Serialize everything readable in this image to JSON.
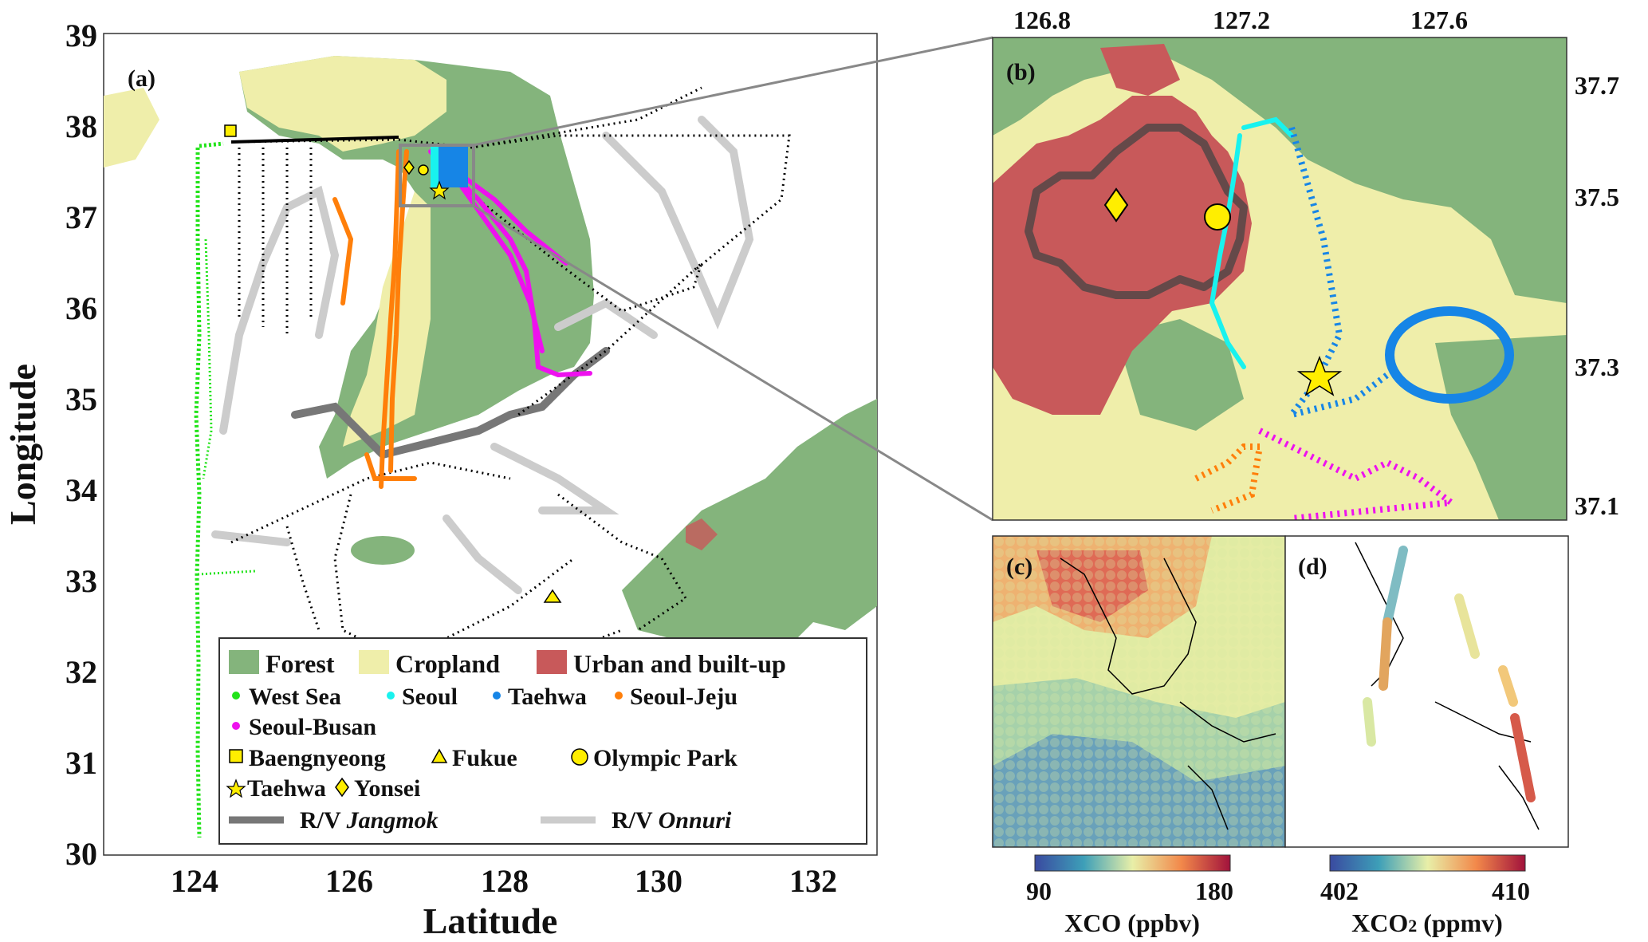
{
  "panels": {
    "a": {
      "label": "(a)",
      "xlabel": "Latitude",
      "ylabel": "Longitude",
      "xticks": [
        "124",
        "126",
        "128",
        "130",
        "132"
      ],
      "yticks": [
        "39",
        "38",
        "37",
        "36",
        "35",
        "34",
        "33",
        "32",
        "31",
        "30"
      ],
      "xlim": [
        123,
        133
      ],
      "ylim": [
        30,
        39
      ]
    },
    "b": {
      "label": "(b)",
      "xticks": [
        "126.8",
        "127.2",
        "127.6"
      ],
      "yticks": [
        "37.7",
        "37.5",
        "37.3",
        "37.1"
      ]
    },
    "c": {
      "label": "(c)",
      "cbar_min": "90",
      "cbar_max": "180",
      "cbar_title": "XCO (ppbv)"
    },
    "d": {
      "label": "(d)",
      "cbar_min": "402",
      "cbar_max": "410",
      "cbar_title_main": "XCO",
      "cbar_title_sub": "2",
      "cbar_title_unit": " (ppmv)"
    }
  },
  "legend": {
    "landcover": [
      {
        "label": "Forest",
        "color": "#84b47c"
      },
      {
        "label": "Cropland",
        "color": "#efeeaa"
      },
      {
        "label": "Urban and built-up",
        "color": "#c8595a"
      }
    ],
    "flights": [
      {
        "label": "West Sea",
        "color": "#22e31a"
      },
      {
        "label": "Seoul",
        "color": "#19f2ee"
      },
      {
        "label": "Taehwa",
        "color": "#1685e6"
      },
      {
        "label": "Seoul-Jeju",
        "color": "#ff7f0a"
      },
      {
        "label": "Seoul-Busan",
        "color": "#ee11ee"
      }
    ],
    "sites": [
      {
        "label": "Baengnyeong",
        "shape": "square"
      },
      {
        "label": "Fukue",
        "shape": "triangle"
      },
      {
        "label": "Olympic Park",
        "shape": "circle"
      },
      {
        "label": "Taehwa",
        "shape": "star"
      },
      {
        "label": "Yonsei",
        "shape": "diamond"
      }
    ],
    "ships": [
      {
        "prefix": "R/V ",
        "name": "Jangmok",
        "color": "#777777"
      },
      {
        "prefix": "R/V ",
        "name": "Onnuri",
        "color": "#cccccc"
      }
    ]
  },
  "colors": {
    "forest": "#84b47c",
    "cropland": "#efeeaa",
    "urban": "#c8595a",
    "site_marker": "#ffee00"
  }
}
